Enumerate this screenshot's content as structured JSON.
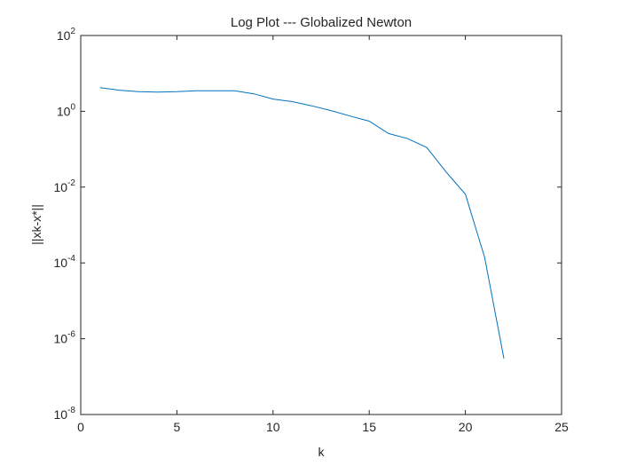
{
  "chart_data": {
    "type": "line",
    "title": "Log Plot --- Globalized Newton",
    "xlabel": "k",
    "ylabel": "||xk-x*||",
    "xlim": [
      0,
      25
    ],
    "ylim": [
      1e-08,
      100
    ],
    "yscale": "log",
    "x_ticks": [
      0,
      5,
      10,
      15,
      20,
      25
    ],
    "x_tick_labels": [
      "0",
      "5",
      "10",
      "15",
      "20",
      "25"
    ],
    "y_ticks": [
      {
        "value": 100,
        "base": "10",
        "exponent": "2"
      },
      {
        "value": 1,
        "base": "10",
        "exponent": "0"
      },
      {
        "value": 0.01,
        "base": "10",
        "exponent": "-2"
      },
      {
        "value": 0.0001,
        "base": "10",
        "exponent": "-4"
      },
      {
        "value": 1e-06,
        "base": "10",
        "exponent": "-6"
      },
      {
        "value": 1e-08,
        "base": "10",
        "exponent": "-8"
      }
    ],
    "grid": false,
    "line_color": "#0072BD",
    "series": [
      {
        "x": [
          1,
          2,
          3,
          4,
          5,
          6,
          7,
          8,
          9,
          10,
          11,
          12,
          13,
          14,
          15,
          16,
          17,
          18,
          19,
          20,
          21,
          22
        ],
        "values": [
          4.2,
          3.6,
          3.3,
          3.2,
          3.3,
          3.5,
          3.5,
          3.5,
          2.9,
          2.1,
          1.8,
          1.4,
          1.05,
          0.75,
          0.55,
          0.26,
          0.19,
          0.11,
          0.025,
          0.0065,
          0.00014,
          3e-07
        ]
      }
    ]
  }
}
